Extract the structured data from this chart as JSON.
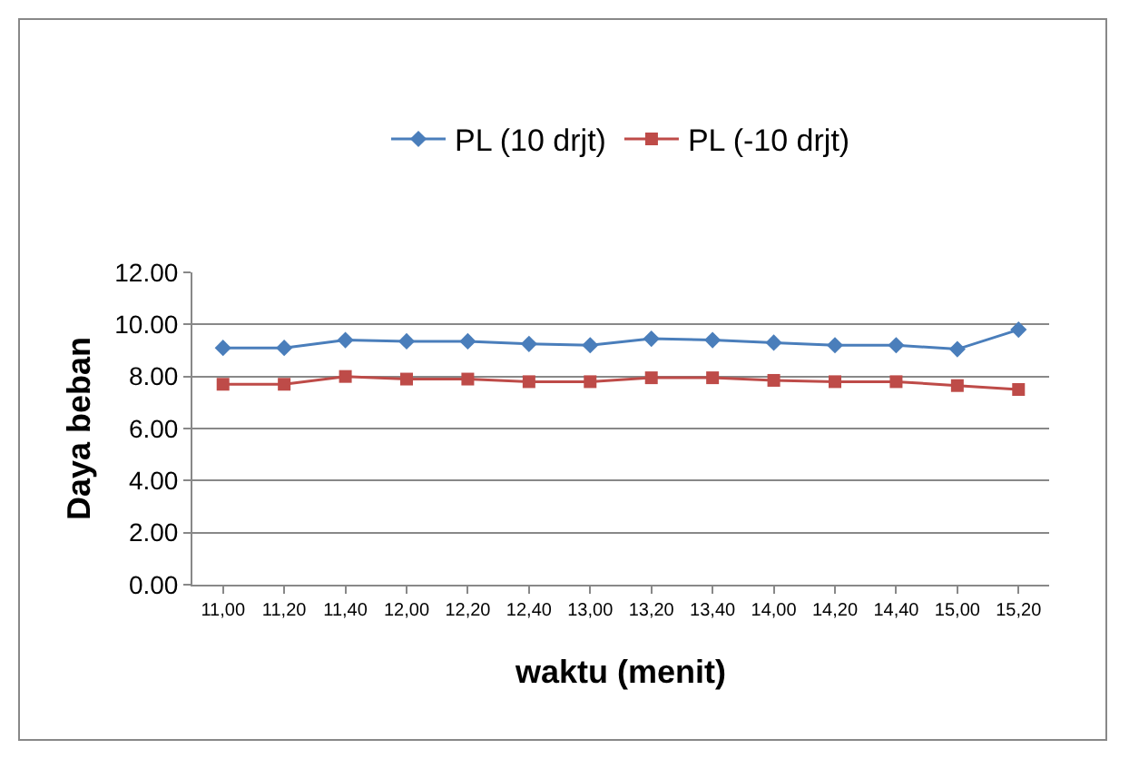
{
  "chart_data": {
    "type": "line",
    "xlabel": "waktu (menit)",
    "ylabel": "Daya beban",
    "categories": [
      "11,00",
      "11,20",
      "11,40",
      "12,00",
      "12,20",
      "12,40",
      "13,00",
      "13,20",
      "13,40",
      "14,00",
      "14,20",
      "14,40",
      "15,00",
      "15,20"
    ],
    "series": [
      {
        "name": "PL (10 drjt)",
        "color": "#4a7ebb",
        "marker": "diamond",
        "values": [
          9.1,
          9.1,
          9.4,
          9.35,
          9.35,
          9.25,
          9.2,
          9.45,
          9.4,
          9.3,
          9.2,
          9.2,
          9.05,
          9.8
        ]
      },
      {
        "name": "PL (-10 drjt)",
        "color": "#be4b48",
        "marker": "square",
        "values": [
          7.7,
          7.7,
          8.0,
          7.9,
          7.9,
          7.8,
          7.8,
          7.95,
          7.95,
          7.85,
          7.8,
          7.8,
          7.65,
          7.5
        ]
      }
    ],
    "ylim": [
      0,
      12
    ],
    "yticks": [
      {
        "value": 0,
        "label": "0.00"
      },
      {
        "value": 2,
        "label": "2.00"
      },
      {
        "value": 4,
        "label": "4.00"
      },
      {
        "value": 6,
        "label": "6.00"
      },
      {
        "value": 8,
        "label": "8.00"
      },
      {
        "value": 10,
        "label": "10.00"
      },
      {
        "value": 12,
        "label": "12.00"
      }
    ],
    "grid": "y",
    "legend": "top",
    "line_style": "solid"
  }
}
